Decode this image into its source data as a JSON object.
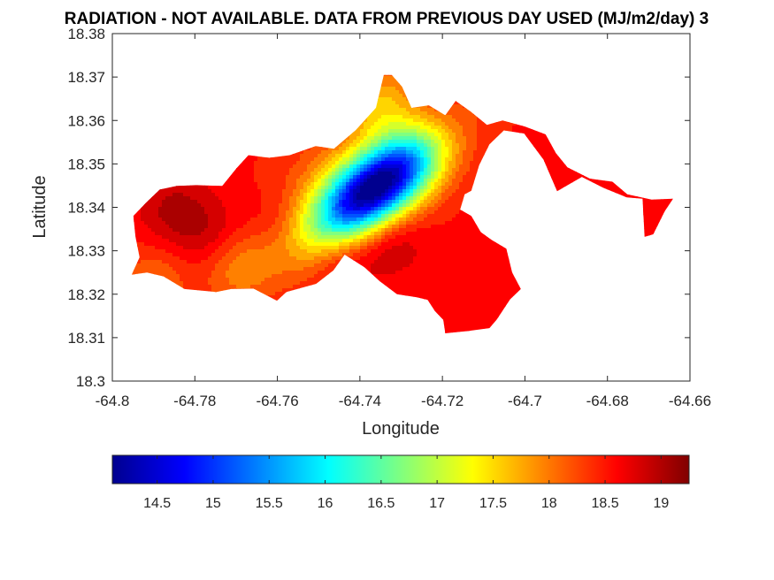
{
  "figure": {
    "title": "RADIATION - NOT AVAILABLE.  DATA FROM PREVIOUS DAY USED (MJ/m2/day) 3"
  },
  "chart_data": {
    "type": "heatmap",
    "title": "RADIATION - NOT AVAILABLE.  DATA FROM PREVIOUS DAY USED (MJ/m2/day) 3",
    "xlabel": "Longitude",
    "ylabel": "Latitude",
    "xlim": [
      -64.8,
      -64.66
    ],
    "ylim": [
      18.3,
      18.38
    ],
    "xticks": [
      "-64.8",
      "-64.78",
      "-64.76",
      "-64.74",
      "-64.72",
      "-64.7",
      "-64.68",
      "-64.66"
    ],
    "yticks": [
      "18.3",
      "18.31",
      "18.32",
      "18.33",
      "18.34",
      "18.35",
      "18.36",
      "18.37",
      "18.38"
    ],
    "colormap": "jet",
    "colorbar": {
      "range": [
        14.1,
        19.25
      ],
      "ticks": [
        "14.5",
        "15",
        "15.5",
        "16",
        "16.5",
        "17",
        "17.5",
        "18",
        "18.5",
        "19"
      ],
      "position": "bottom"
    },
    "background_value": 18.55,
    "minimum": {
      "lon": -64.736,
      "lat": 18.3445,
      "value": 14.3
    },
    "island_outline": [
      [
        -64.7918,
        18.3411
      ],
      [
        -64.7885,
        18.3441
      ],
      [
        -64.7845,
        18.3449
      ],
      [
        -64.7797,
        18.3451
      ],
      [
        -64.7734,
        18.3449
      ],
      [
        -64.7699,
        18.349
      ],
      [
        -64.767,
        18.352
      ],
      [
        -64.762,
        18.3514
      ],
      [
        -64.757,
        18.352
      ],
      [
        -64.7507,
        18.3541
      ],
      [
        -64.7463,
        18.3535
      ],
      [
        -64.741,
        18.3578
      ],
      [
        -64.7361,
        18.3629
      ],
      [
        -64.7342,
        18.3705
      ],
      [
        -64.7323,
        18.3705
      ],
      [
        -64.7298,
        18.3678
      ],
      [
        -64.7275,
        18.3629
      ],
      [
        -64.7233,
        18.3635
      ],
      [
        -64.7193,
        18.3612
      ],
      [
        -64.7168,
        18.3645
      ],
      [
        -64.7131,
        18.362
      ],
      [
        -64.7092,
        18.359
      ],
      [
        -64.7054,
        18.36
      ],
      [
        -64.7,
        18.3586
      ],
      [
        -64.695,
        18.3568
      ],
      [
        -64.6925,
        18.3525
      ],
      [
        -64.6897,
        18.3492
      ],
      [
        -64.6842,
        18.3466
      ],
      [
        -64.6788,
        18.3459
      ],
      [
        -64.6752,
        18.343
      ],
      [
        -64.6693,
        18.3418
      ],
      [
        -64.6641,
        18.342
      ],
      [
        -64.6661,
        18.3391
      ],
      [
        -64.6689,
        18.3338
      ],
      [
        -64.671,
        18.3332
      ],
      [
        -64.6715,
        18.342
      ],
      [
        -64.6753,
        18.3423
      ],
      [
        -64.681,
        18.3445
      ],
      [
        -64.6862,
        18.347
      ],
      [
        -64.6922,
        18.3437
      ],
      [
        -64.6955,
        18.351
      ],
      [
        -64.7002,
        18.357
      ],
      [
        -64.7051,
        18.3577
      ],
      [
        -64.7086,
        18.3545
      ],
      [
        -64.7111,
        18.3497
      ],
      [
        -64.713,
        18.3438
      ],
      [
        -64.7146,
        18.343
      ],
      [
        -64.7157,
        18.3395
      ],
      [
        -64.713,
        18.338
      ],
      [
        -64.7107,
        18.3343
      ],
      [
        -64.7081,
        18.3325
      ],
      [
        -64.7045,
        18.3305
      ],
      [
        -64.7031,
        18.325
      ],
      [
        -64.701,
        18.3212
      ],
      [
        -64.7036,
        18.3188
      ],
      [
        -64.7068,
        18.3142
      ],
      [
        -64.7086,
        18.3122
      ],
      [
        -64.714,
        18.3115
      ],
      [
        -64.7193,
        18.311
      ],
      [
        -64.7198,
        18.3141
      ],
      [
        -64.7218,
        18.3161
      ],
      [
        -64.7236,
        18.3187
      ],
      [
        -64.7262,
        18.3193
      ],
      [
        -64.731,
        18.32
      ],
      [
        -64.7352,
        18.323
      ],
      [
        -64.7389,
        18.3262
      ],
      [
        -64.7437,
        18.3291
      ],
      [
        -64.7464,
        18.3255
      ],
      [
        -64.7506,
        18.3224
      ],
      [
        -64.7578,
        18.3205
      ],
      [
        -64.7601,
        18.3185
      ],
      [
        -64.7658,
        18.3213
      ],
      [
        -64.7712,
        18.3212
      ],
      [
        -64.7748,
        18.3205
      ],
      [
        -64.7825,
        18.3212
      ],
      [
        -64.7876,
        18.3241
      ],
      [
        -64.7916,
        18.325
      ],
      [
        -64.7953,
        18.3245
      ],
      [
        -64.7934,
        18.3285
      ],
      [
        -64.7944,
        18.3333
      ],
      [
        -64.7949,
        18.338
      ]
    ],
    "field_features": [
      {
        "kind": "minimum",
        "lon": -64.736,
        "lat": 18.3445,
        "value": 14.3
      },
      {
        "kind": "ridge",
        "lon": -64.744,
        "lat": 18.344,
        "value": 17.4
      },
      {
        "kind": "max",
        "lon": -64.785,
        "lat": 18.339,
        "value": 19.0
      },
      {
        "kind": "max",
        "lon": -64.775,
        "lat": 18.333,
        "value": 19.0
      },
      {
        "kind": "max",
        "lon": -64.76,
        "lat": 18.337,
        "value": 18.9
      },
      {
        "kind": "max",
        "lon": -64.745,
        "lat": 18.33,
        "value": 19.0
      },
      {
        "kind": "max",
        "lon": -64.733,
        "lat": 18.333,
        "value": 19.0
      },
      {
        "kind": "max",
        "lon": -64.72,
        "lat": 18.358,
        "value": 18.9
      },
      {
        "kind": "min-local",
        "lon": -64.77,
        "lat": 18.327,
        "value": 18.0
      },
      {
        "kind": "min-local",
        "lon": -64.735,
        "lat": 18.364,
        "value": 17.8
      },
      {
        "kind": "min-local",
        "lon": -64.79,
        "lat": 18.323,
        "value": 18.1
      }
    ]
  }
}
